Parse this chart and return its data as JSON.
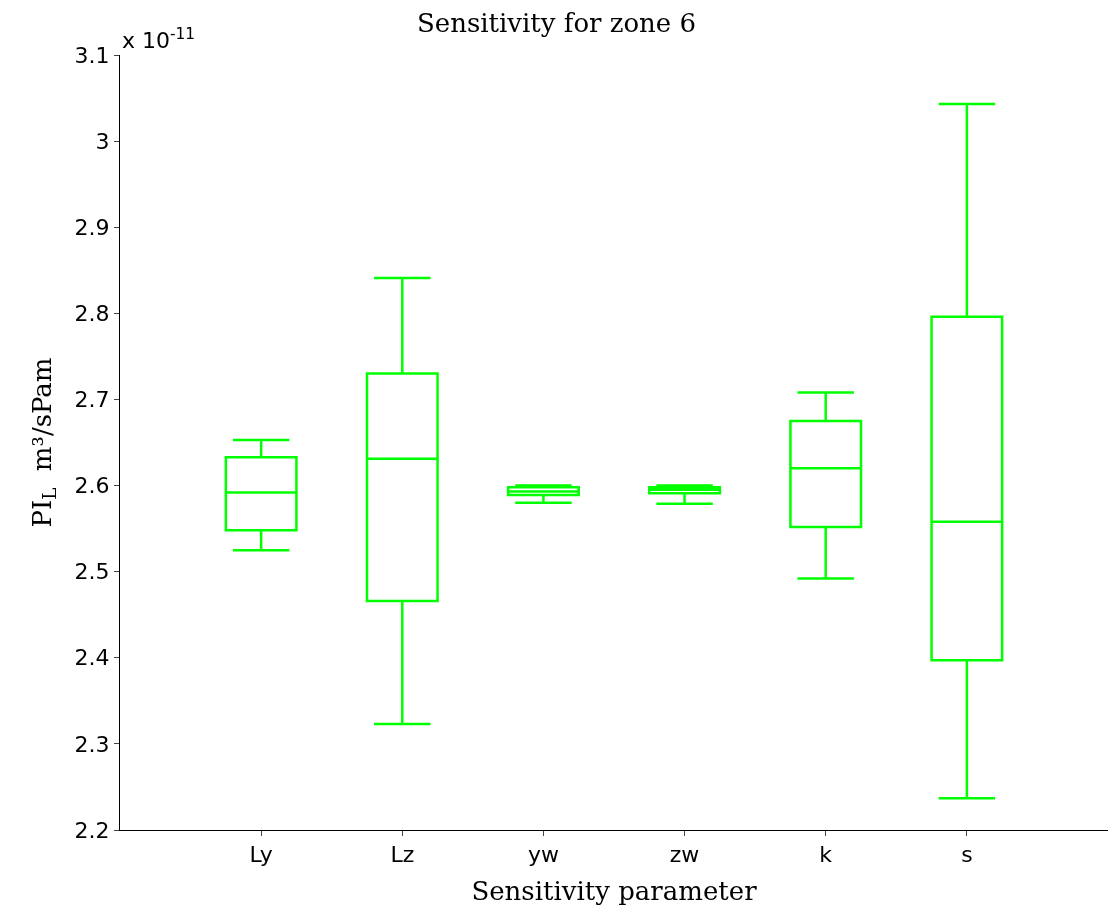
{
  "chart_data": {
    "type": "box",
    "title": "Sensitivity for zone 6",
    "xlabel": "Sensitivity parameter",
    "ylabel": "PI$_{L}$  m³/sPam",
    "annotations": [
      "x 10$^{-11}$"
    ],
    "categories": [
      "Ly",
      "Lz",
      "yw",
      "zw",
      "k",
      "s"
    ],
    "boxes": [
      {
        "low": 2.525,
        "q1": 2.548,
        "median": 2.592,
        "q3": 2.633,
        "high": 2.653
      },
      {
        "low": 2.323,
        "q1": 2.466,
        "median": 2.631,
        "q3": 2.73,
        "high": 2.841
      },
      {
        "low": 2.58,
        "q1": 2.589,
        "median": 2.593,
        "q3": 2.598,
        "high": 2.6
      },
      {
        "low": 2.579,
        "q1": 2.591,
        "median": 2.595,
        "q3": 2.598,
        "high": 2.6
      },
      {
        "low": 2.492,
        "q1": 2.552,
        "median": 2.62,
        "q3": 2.675,
        "high": 2.708
      },
      {
        "low": 2.237,
        "q1": 2.397,
        "median": 2.558,
        "q3": 2.796,
        "high": 3.043
      }
    ],
    "color": "#00ff00",
    "ylim": [
      2.2,
      3.1
    ],
    "yticks": [
      2.2,
      2.3,
      2.4,
      2.5,
      2.6,
      2.7,
      2.8,
      2.9,
      3,
      3.1
    ]
  }
}
